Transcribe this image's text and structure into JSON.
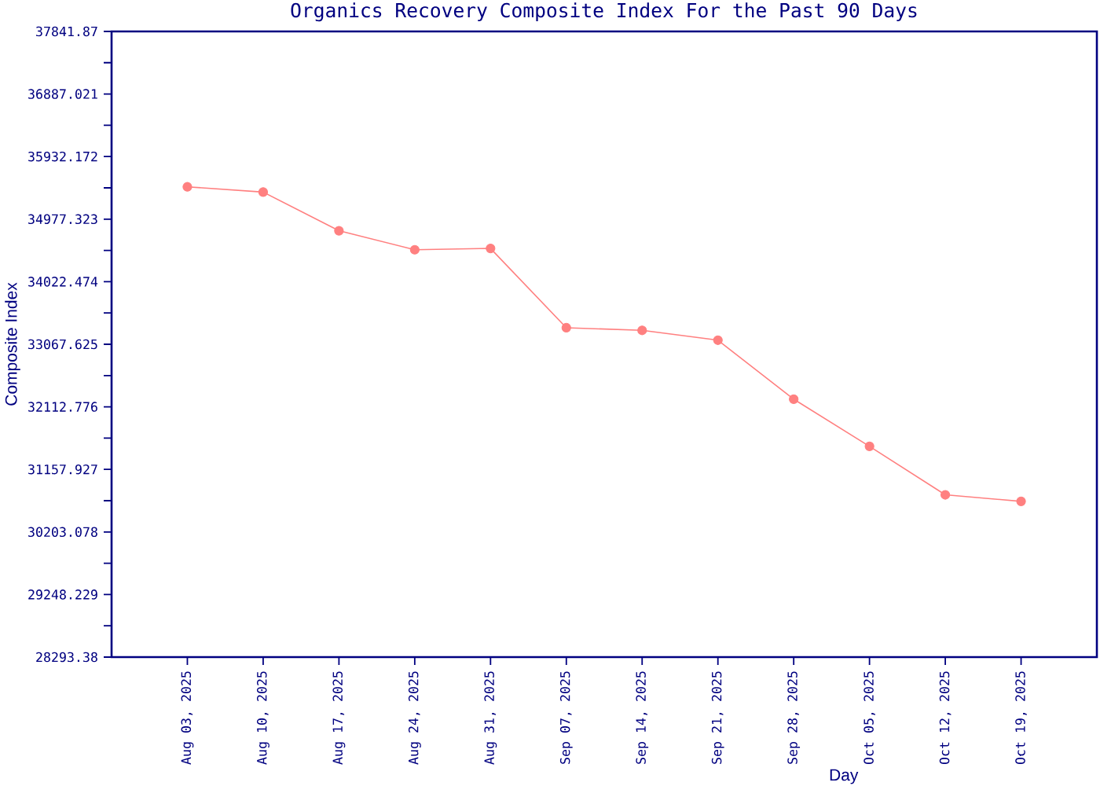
{
  "chart_data": {
    "type": "line",
    "title": "Organics Recovery Composite Index For the Past 90 Days",
    "xlabel": "Day",
    "ylabel": "Composite Index",
    "categories": [
      "Aug 03, 2025",
      "Aug 10, 2025",
      "Aug 17, 2025",
      "Aug 24, 2025",
      "Aug 31, 2025",
      "Sep 07, 2025",
      "Sep 14, 2025",
      "Sep 21, 2025",
      "Sep 28, 2025",
      "Oct 05, 2025",
      "Oct 12, 2025",
      "Oct 19, 2025"
    ],
    "values": [
      35470,
      35390,
      34800,
      34510,
      34530,
      33320,
      33280,
      33130,
      32230,
      31510,
      30770,
      30670
    ],
    "color": "#ff8080",
    "marker": "circle",
    "line_style": "solid",
    "ylim": [
      28293.38,
      37841.87
    ],
    "yticks": [
      28293.38,
      29248.229,
      30203.078,
      31157.927,
      32112.776,
      33067.625,
      34022.474,
      34977.323,
      35932.172,
      36887.021,
      37841.87
    ]
  }
}
